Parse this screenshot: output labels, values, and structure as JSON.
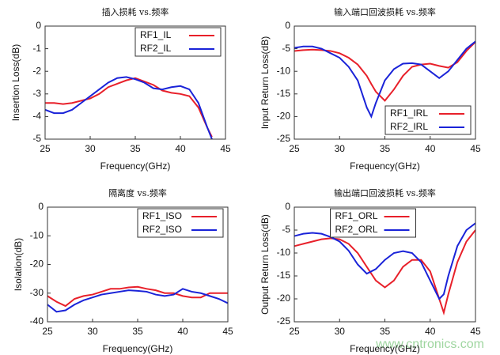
{
  "chart_data": [
    {
      "type": "line",
      "title": "插入损耗 vs.频率",
      "xlabel": "Frequency(GHz)",
      "ylabel": "Insertion Loss(dB)",
      "x": [
        25,
        26,
        27,
        28,
        29,
        30,
        31,
        32,
        33,
        34,
        35,
        36,
        37,
        38,
        39,
        40,
        41,
        42,
        43,
        43.5
      ],
      "series": [
        {
          "name": "RF1_IL",
          "color": "#e8202a",
          "values": [
            -3.4,
            -3.4,
            -3.45,
            -3.4,
            -3.3,
            -3.2,
            -3.0,
            -2.7,
            -2.55,
            -2.4,
            -2.3,
            -2.45,
            -2.6,
            -2.85,
            -2.95,
            -3.0,
            -3.1,
            -3.6,
            -4.5,
            -4.9
          ]
        },
        {
          "name": "RF2_IL",
          "color": "#1a23d8",
          "values": [
            -3.7,
            -3.85,
            -3.85,
            -3.7,
            -3.4,
            -3.1,
            -2.8,
            -2.5,
            -2.3,
            -2.25,
            -2.35,
            -2.5,
            -2.75,
            -2.8,
            -2.7,
            -2.65,
            -2.8,
            -3.4,
            -4.5,
            -5
          ]
        }
      ],
      "xlim": [
        25,
        45
      ],
      "ylim": [
        -5,
        0
      ],
      "xticks": [
        25,
        30,
        35,
        40,
        45
      ],
      "yticks": [
        0,
        -1,
        -2,
        -3,
        -4,
        -5
      ],
      "legend": "upper right"
    },
    {
      "type": "line",
      "title": "输入端口回波损耗 vs.频率",
      "xlabel": "Frequency(GHz)",
      "ylabel": "Input Return Loss(dB)",
      "x": [
        25,
        26,
        27,
        28,
        29,
        30,
        31,
        32,
        33,
        33.5,
        34,
        35,
        36,
        37,
        38,
        39,
        40,
        41,
        42,
        43,
        44,
        45
      ],
      "series": [
        {
          "name": "RF1_IRL",
          "color": "#e8202a",
          "values": [
            -5.5,
            -5.3,
            -5.2,
            -5.3,
            -5.5,
            -6,
            -7,
            -8.5,
            -11,
            -12.8,
            -14.5,
            -16.5,
            -14,
            -11,
            -9,
            -8.5,
            -8.3,
            -8.8,
            -9.2,
            -8,
            -5.5,
            -3.5
          ]
        },
        {
          "name": "RF2_IRL",
          "color": "#1a23d8",
          "values": [
            -4.8,
            -4.5,
            -4.5,
            -5,
            -6,
            -7,
            -9,
            -12,
            -18,
            -20,
            -17,
            -12,
            -9.5,
            -8.3,
            -8.2,
            -8.5,
            -10,
            -11.5,
            -10,
            -7.5,
            -5,
            -3.4
          ]
        }
      ],
      "xlim": [
        25,
        45
      ],
      "ylim": [
        -25,
        0
      ],
      "xticks": [
        25,
        30,
        35,
        40,
        45
      ],
      "yticks": [
        0,
        -5,
        -10,
        -15,
        -20,
        -25
      ],
      "legend": "lower right"
    },
    {
      "type": "line",
      "title": "隔离度 vs.频率",
      "xlabel": "Frequency(GHz)",
      "ylabel": "Isolation(dB)",
      "x": [
        25,
        26,
        27,
        28,
        29,
        30,
        31,
        32,
        33,
        34,
        35,
        36,
        37,
        38,
        39,
        40,
        41,
        42,
        43,
        44,
        45
      ],
      "series": [
        {
          "name": "RF1_ISO",
          "color": "#e8202a",
          "values": [
            -31,
            -33,
            -34.5,
            -32,
            -31,
            -30.5,
            -29.5,
            -28.5,
            -28.5,
            -28,
            -27.8,
            -28.5,
            -29,
            -30,
            -30,
            -31,
            -31.5,
            -31.5,
            -30,
            -30,
            -30
          ]
        },
        {
          "name": "RF2_ISO",
          "color": "#1a23d8",
          "values": [
            -34,
            -36.5,
            -36,
            -34,
            -32.5,
            -31.5,
            -30.5,
            -30,
            -29.5,
            -29,
            -29.2,
            -29.5,
            -30.5,
            -31,
            -30.5,
            -28.5,
            -29.5,
            -30,
            -31,
            -32,
            -33.5
          ]
        }
      ],
      "xlim": [
        25,
        45
      ],
      "ylim": [
        -40,
        0
      ],
      "xticks": [
        25,
        30,
        35,
        40,
        45
      ],
      "yticks": [
        0,
        -10,
        -20,
        -30,
        -40
      ],
      "legend": "upper right"
    },
    {
      "type": "line",
      "title": "输出端口回波损耗 vs.频率",
      "xlabel": "Frequency(GHz)",
      "ylabel": "Output Return Loss(dB)",
      "x": [
        25,
        26,
        27,
        28,
        29,
        30,
        31,
        32,
        33,
        34,
        35,
        36,
        37,
        38,
        39,
        40,
        41,
        41.5,
        42,
        43,
        44,
        45
      ],
      "series": [
        {
          "name": "RF1_ORL",
          "color": "#e8202a",
          "values": [
            -8.5,
            -8,
            -7.5,
            -7,
            -6.8,
            -7,
            -8,
            -10,
            -13,
            -16,
            -17.5,
            -16,
            -13,
            -11.5,
            -11.5,
            -14,
            -20,
            -23,
            -19,
            -12,
            -7.5,
            -5
          ]
        },
        {
          "name": "RF2_ORL",
          "color": "#1a23d8",
          "values": [
            -6.3,
            -5.8,
            -5.6,
            -5.8,
            -6.5,
            -7.5,
            -9.5,
            -12.5,
            -14.5,
            -13.5,
            -11.5,
            -10,
            -9.6,
            -10,
            -12,
            -16,
            -20,
            -19,
            -15,
            -8.5,
            -5,
            -3.5
          ]
        }
      ],
      "xlim": [
        25,
        45
      ],
      "ylim": [
        -25,
        0
      ],
      "xticks": [
        25,
        30,
        35,
        40,
        45
      ],
      "yticks": [
        0,
        -5,
        -10,
        -15,
        -20,
        -25
      ],
      "legend": "upper center"
    }
  ],
  "watermark": "www.cntronics.com"
}
